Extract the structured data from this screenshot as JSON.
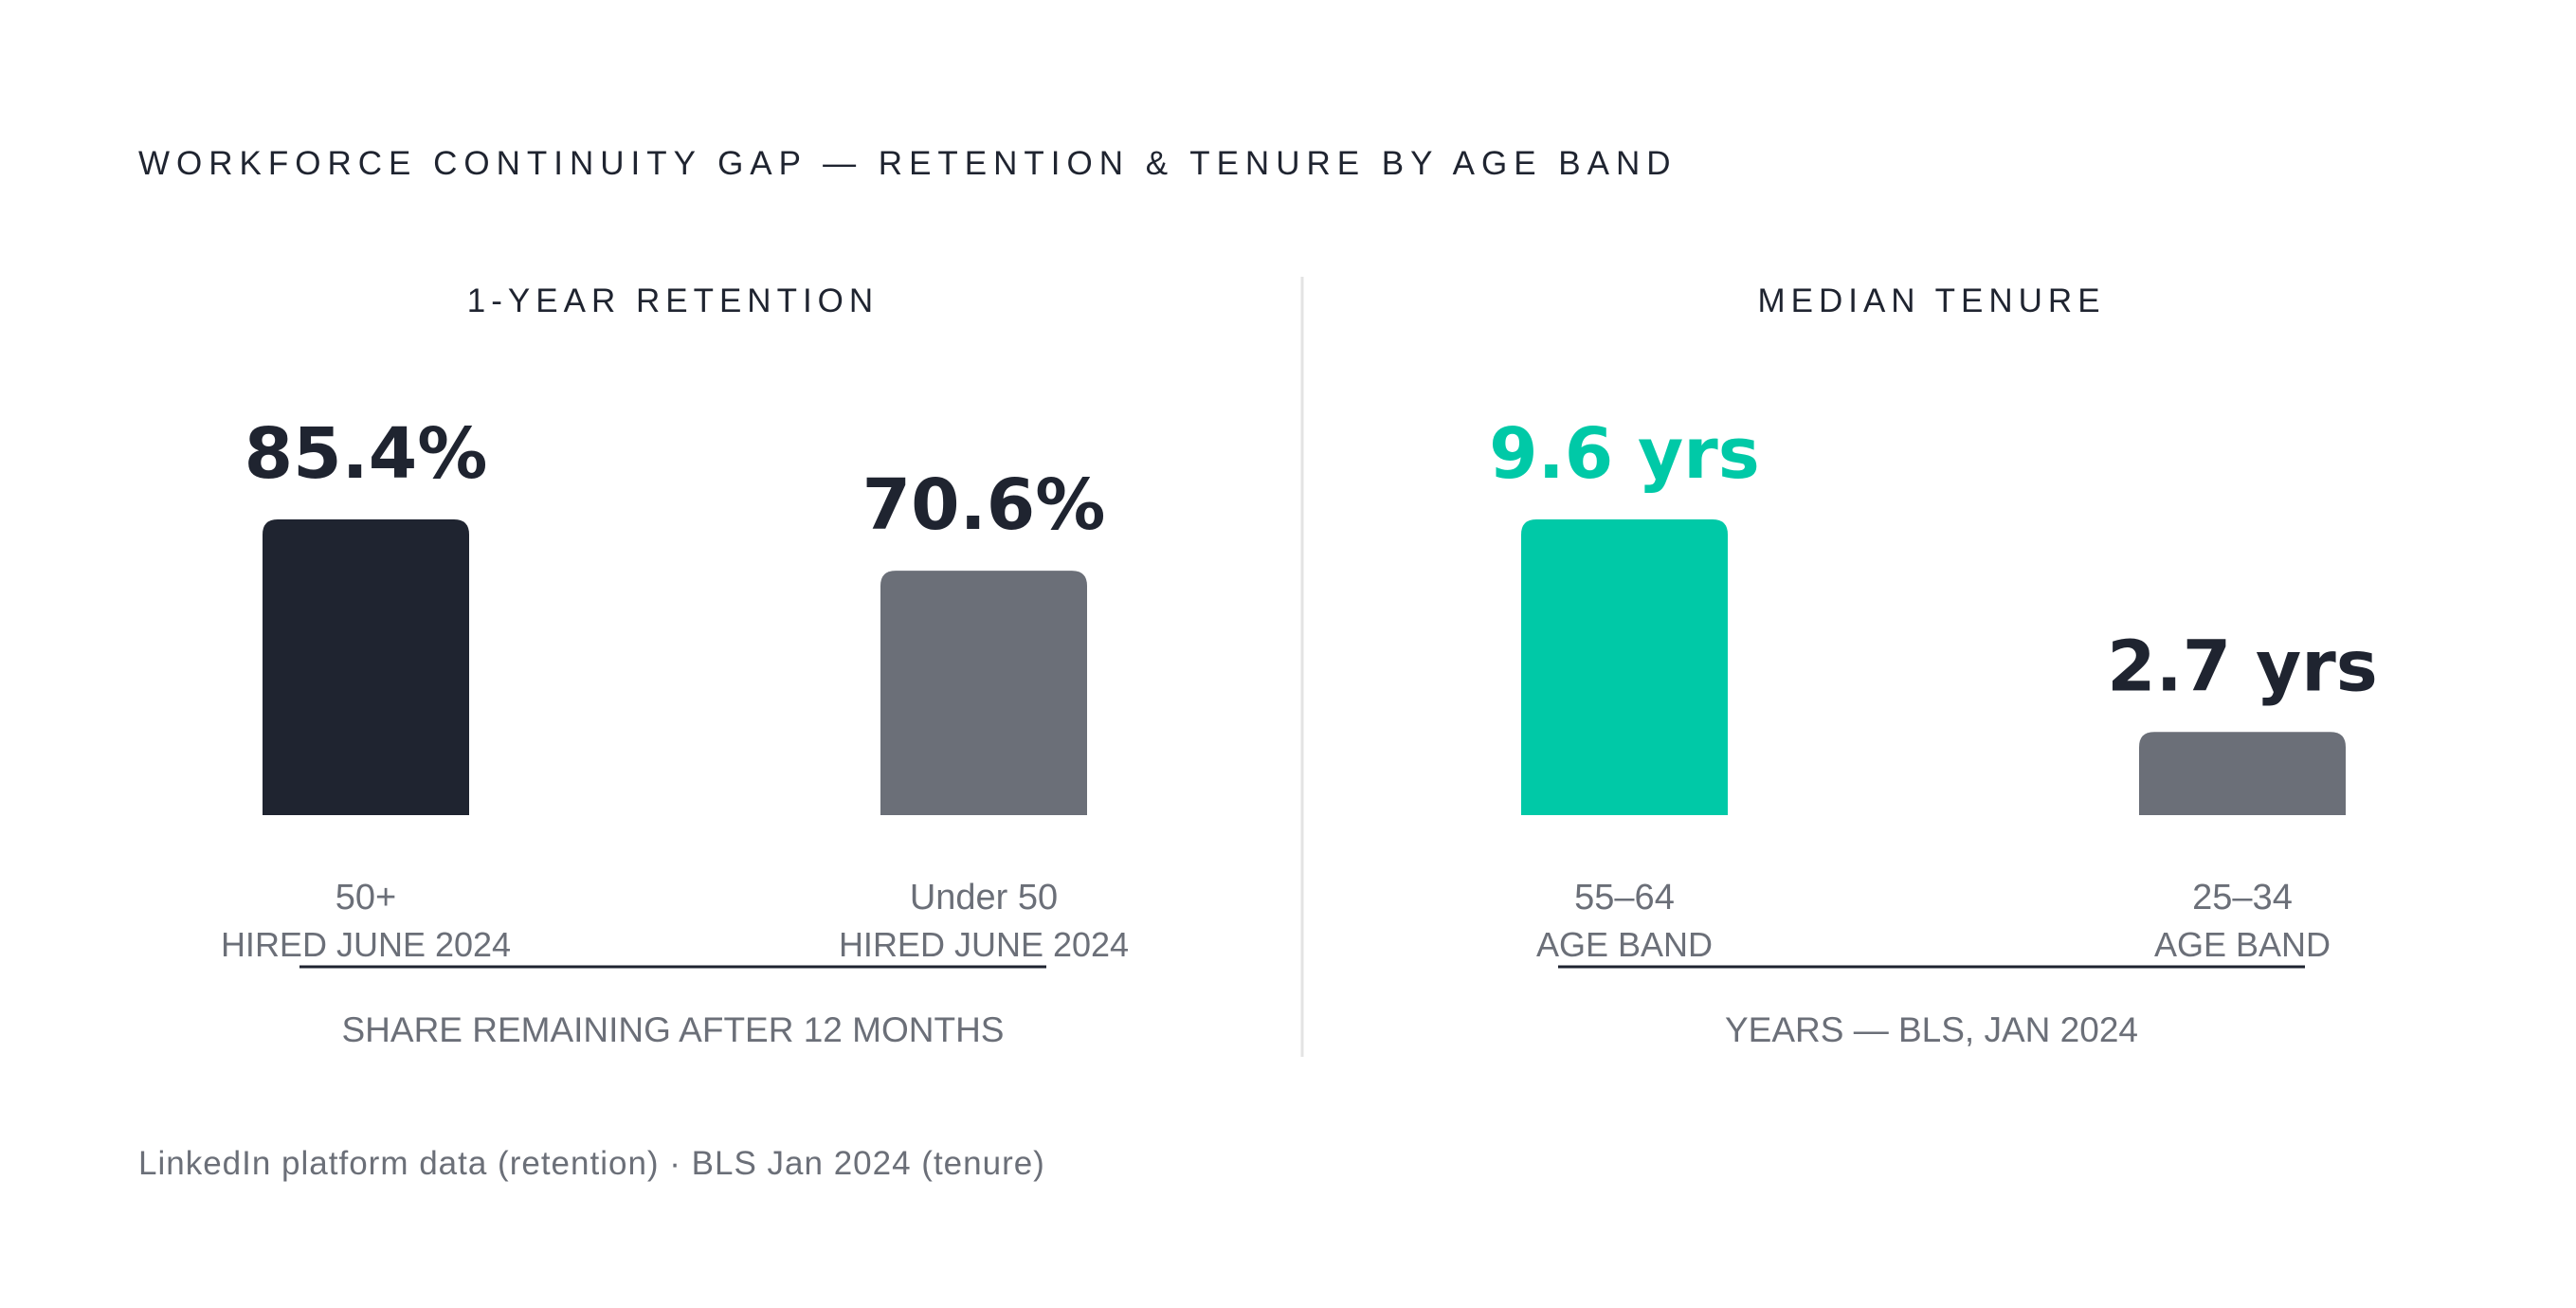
{
  "title": "WORKFORCE CONTINUITY GAP — RETENTION & TENURE BY AGE BAND",
  "source": "LinkedIn platform data (retention) · BLS Jan 2024 (tenure)",
  "colors": {
    "dark": "#1f2430",
    "gray": "#6b6f78",
    "accent": "#00c9a7",
    "divider": "#e3e3e3"
  },
  "chart_data": [
    {
      "type": "bar",
      "title": "1-YEAR RETENTION",
      "caption": "SHARE REMAINING AFTER 12 MONTHS",
      "categories": [
        "50+",
        "Under 50"
      ],
      "sublabels": [
        "HIRED JUNE 2024",
        "HIRED JUNE 2024"
      ],
      "values": [
        85.4,
        70.6
      ],
      "value_labels": [
        "85.4%",
        "70.6%"
      ],
      "bar_colors": [
        "#1f2430",
        "#6b6f78"
      ],
      "label_colors": [
        "#1f2430",
        "#1f2430"
      ],
      "ylim": [
        0,
        85.4
      ]
    },
    {
      "type": "bar",
      "title": "MEDIAN TENURE",
      "caption": "YEARS — BLS, JAN 2024",
      "categories": [
        "55–64",
        "25–34"
      ],
      "sublabels": [
        "AGE BAND",
        "AGE BAND"
      ],
      "values": [
        9.6,
        2.7
      ],
      "value_labels": [
        "9.6 yrs",
        "2.7 yrs"
      ],
      "bar_colors": [
        "#00c9a7",
        "#6b6f78"
      ],
      "label_colors": [
        "#00c9a7",
        "#1f2430"
      ],
      "ylim": [
        0,
        9.6
      ]
    }
  ]
}
